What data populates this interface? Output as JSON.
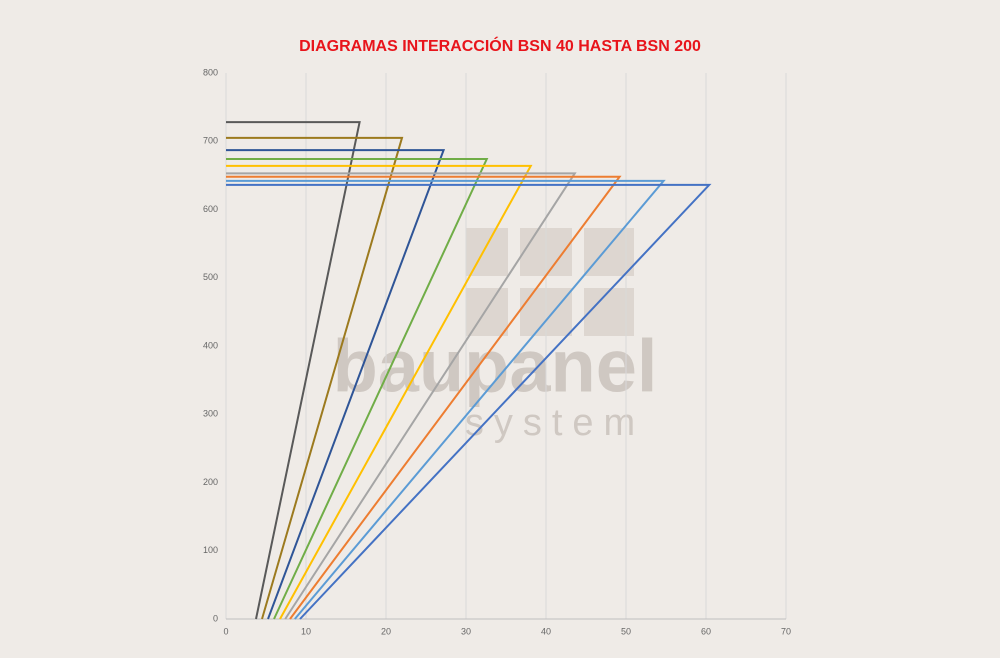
{
  "chart_data": {
    "type": "line",
    "title": "DIAGRAMAS INTERACCIÓN BSN 40 HASTA BSN 200",
    "title_color": "#e8141b",
    "watermark": [
      "baupanel",
      "system"
    ],
    "xlim": [
      0,
      70
    ],
    "xticks": [
      0,
      10,
      20,
      30,
      40,
      50,
      60,
      70
    ],
    "ylim": [
      0,
      800
    ],
    "yticks": [
      0,
      100,
      200,
      300,
      400,
      500,
      600,
      700,
      800
    ],
    "grid": "x",
    "series": [
      {
        "color": "#595959",
        "x": [
          0,
          16.7,
          3.75
        ],
        "values": [
          728,
          728,
          0
        ]
      },
      {
        "color": "#9c7a1e",
        "x": [
          0,
          22,
          4.5
        ],
        "values": [
          705,
          705,
          0
        ]
      },
      {
        "color": "#2f5597",
        "x": [
          0,
          27.2,
          5.25
        ],
        "values": [
          687,
          687,
          0
        ]
      },
      {
        "color": "#70ad47",
        "x": [
          0,
          32.6,
          6
        ],
        "values": [
          674,
          674,
          0
        ]
      },
      {
        "color": "#ffc000",
        "x": [
          0,
          38.1,
          6.75
        ],
        "values": [
          664,
          664,
          0
        ]
      },
      {
        "color": "#a5a5a5",
        "x": [
          0,
          43.6,
          7.4
        ],
        "values": [
          653,
          653,
          0
        ]
      },
      {
        "color": "#ed7d31",
        "x": [
          0,
          49.2,
          8
        ],
        "values": [
          648,
          648,
          0
        ]
      },
      {
        "color": "#5b9bd5",
        "x": [
          0,
          54.7,
          8.6
        ],
        "values": [
          642,
          642,
          0
        ]
      },
      {
        "color": "#4472c4",
        "x": [
          0,
          60.4,
          9.25
        ],
        "values": [
          636,
          636,
          0
        ]
      }
    ]
  }
}
